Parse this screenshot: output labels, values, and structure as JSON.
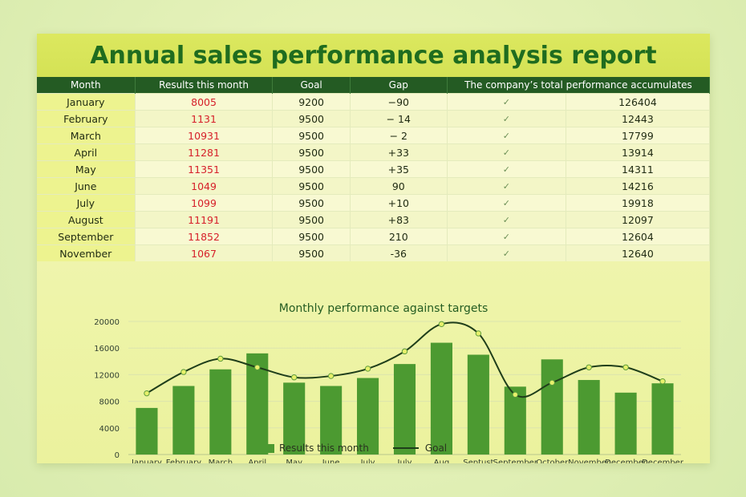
{
  "report": {
    "title": "Annual sales performance analysis report"
  },
  "table": {
    "headers": [
      "Month",
      "Results this month",
      "Goal",
      "Gap",
      "",
      "The company’s total performance accumulates"
    ],
    "rows": [
      [
        "January",
        "8005",
        "9200",
        "−90",
        "✓",
        "126404"
      ],
      [
        "February",
        "1131",
        "9500",
        "− 14",
        "✓",
        "12443"
      ],
      [
        "March",
        "10931",
        "9500",
        "− 2",
        "✓",
        "17799"
      ],
      [
        "April",
        "11281",
        "9500",
        "+33",
        "✓",
        "13914"
      ],
      [
        "May",
        "11351",
        "9500",
        "+35",
        "✓",
        "14311"
      ],
      [
        "June",
        "1049",
        "9500",
        "90",
        "✓",
        "14216"
      ],
      [
        "July",
        "1099",
        "9500",
        "+10",
        "✓",
        "19918"
      ],
      [
        "August",
        "11191",
        "9500",
        "+83",
        "✓",
        "12097"
      ],
      [
        "September",
        "11852",
        "9500",
        "210",
        "✓",
        "12604"
      ],
      [
        "November",
        "1067",
        "9500",
        "-36",
        "✓",
        "12640"
      ]
    ]
  },
  "chart_data": {
    "type": "bar",
    "title": "Monthly performance against targets",
    "categories": [
      "January",
      "February",
      "March",
      "April",
      "May",
      "June",
      "July",
      "July",
      "Aug",
      "Septust",
      "September",
      "October",
      "November",
      "December",
      "December"
    ],
    "series": [
      {
        "name": "Results this month",
        "type": "bar",
        "color": "#4c9a31",
        "values": [
          7000,
          10300,
          12800,
          15200,
          10800,
          10300,
          11500,
          13600,
          16800,
          15000,
          10200,
          14300,
          11200,
          9300,
          10700
        ]
      },
      {
        "name": "Goal",
        "type": "line",
        "color": "#1f3e1a",
        "values": [
          9200,
          12400,
          14400,
          13100,
          11600,
          11800,
          12900,
          15500,
          19600,
          18200,
          9000,
          10800,
          13100,
          13100,
          11000
        ]
      }
    ],
    "ylim": [
      0,
      20000
    ],
    "yticks": [
      0,
      4000,
      8000,
      12000,
      16000,
      20000
    ],
    "grid": true,
    "legend_position": "bottom"
  }
}
